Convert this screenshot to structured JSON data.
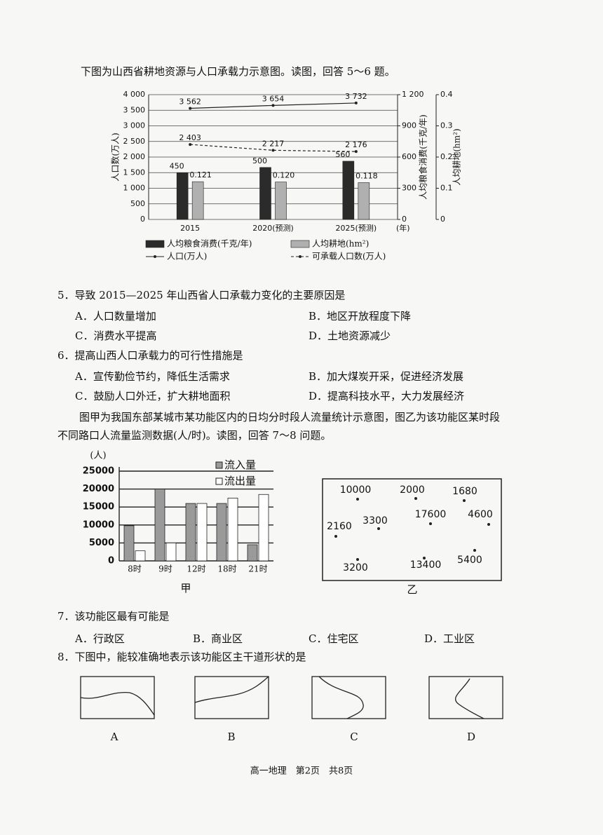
{
  "intro_5_6": "下图为山西省耕地资源与人口承载力示意图。读图，回答 5～6 题。",
  "chart_data": [
    {
      "type": "bar_line",
      "categories": [
        "2015",
        "2020(预测)",
        "2025(预测)"
      ],
      "x_unit": "(年)",
      "ylabel": "人口数(万人)",
      "ylim": [
        0,
        4000
      ],
      "yticks": [
        0,
        500,
        {
          "value": 1000,
          "label": "1 000"
        },
        {
          "value": 1500,
          "label": "1 500"
        },
        {
          "value": 2000,
          "label": "2 000"
        },
        {
          "value": 2500,
          "label": "2 500"
        },
        {
          "value": 3000,
          "label": "3 000"
        },
        {
          "value": 3500,
          "label": "3 500"
        },
        {
          "value": 4000,
          "label": "4 000"
        }
      ],
      "y2label": "人均粮食消费(千克/年)",
      "y2lim": [
        0,
        1200
      ],
      "y2ticks": [
        0,
        300,
        600,
        900,
        {
          "value": 1200,
          "label": "1 200"
        }
      ],
      "y3label": "人均耕地(hm²)",
      "y3lim": [
        0,
        0.4
      ],
      "y3ticks": [
        0,
        0.1,
        0.2,
        0.3,
        0.4
      ],
      "grid": true,
      "series": [
        {
          "name": "人均粮食消费(千克/年)",
          "kind": "bar",
          "axis": "y2",
          "color": "#2b2b2b",
          "values": [
            450,
            500,
            560
          ]
        },
        {
          "name": "人均耕地(hm²)",
          "kind": "bar",
          "axis": "y3",
          "color": "#b0b0b0",
          "values": [
            0.121,
            0.12,
            0.118
          ],
          "value_labels": [
            "0.121",
            "0.120",
            "0.118"
          ]
        },
        {
          "name": "人口(万人)",
          "kind": "line",
          "axis": "y",
          "color": "#222",
          "values": [
            3562,
            3654,
            3732
          ],
          "value_labels": [
            "3 562",
            "3 654",
            "3 732"
          ]
        },
        {
          "name": "可承载人口数(万人)",
          "kind": "dashed-line",
          "axis": "y",
          "color": "#222",
          "values": [
            2403,
            2217,
            2176
          ],
          "value_labels": [
            "2 403",
            "2 217",
            "2 176"
          ]
        }
      ]
    },
    {
      "type": "bar",
      "caption": "甲",
      "ylabel": "(人)",
      "categories": [
        "8时",
        "9时",
        "12时",
        "18时",
        "21时"
      ],
      "ylim": [
        0,
        25000
      ],
      "yticks": [
        0,
        5000,
        10000,
        15000,
        20000,
        25000
      ],
      "grid": true,
      "series": [
        {
          "name": "流入量",
          "color": "#9a9a9a",
          "values": [
            9800,
            20000,
            16000,
            16000,
            4500
          ]
        },
        {
          "name": "流出量",
          "color": "#ffffff",
          "values": [
            2800,
            5000,
            16000,
            17500,
            18500
          ]
        }
      ]
    }
  ],
  "map_yi": {
    "caption": "乙",
    "values": [
      10000,
      2000,
      1680,
      2160,
      3300,
      17600,
      4600,
      3200,
      13400,
      5400
    ]
  },
  "questions": [
    {
      "stem": "5．导致 2015—2025 年山西省人口承载力变化的主要原因是",
      "options": [
        "A．人口数量增加",
        "B．地区开放程度下降",
        "C．消费水平提高",
        "D．土地资源减少"
      ]
    },
    {
      "stem": "6．提高山西人口承载力的可行性措施是",
      "options": [
        "A．宣传勤俭节约，降低生活需求",
        "B．加大煤炭开采，促进经济发展",
        "C．鼓励人口外迁，扩大耕地面积",
        "D．提高科技水平，大力发展经济"
      ]
    },
    {
      "stem": "7．该功能区最有可能是",
      "options": [
        "A．行政区",
        "B．商业区",
        "C．住宅区",
        "D．工业区"
      ]
    },
    {
      "stem": "8．下图中，能较准确地表示该功能区主干道形状的是",
      "options": [
        "A",
        "B",
        "C",
        "D"
      ]
    }
  ],
  "intro_7_8": [
    "图甲为我国东部某城市某功能区内的日均分时段人流量统计示意图，图乙为该功能区某时段",
    "不同路口人流量监测数据(人/时)。读图，回答 7～8 问题。"
  ],
  "footer": "高一地理　第2页　共8页"
}
